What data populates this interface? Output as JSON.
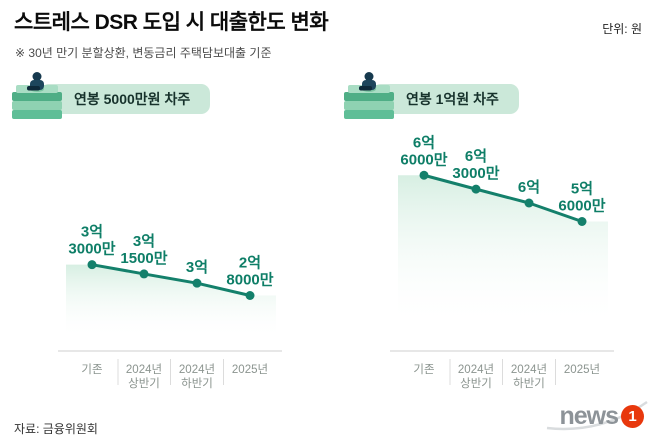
{
  "header": {
    "title": "스트레스 DSR 도입 시 대출한도 변화",
    "unit": "단위: 원",
    "note": "※ 30년 만기 분할상환, 변동금리 주택담보대출 기준"
  },
  "footer": {
    "source": "자료: 금융위원회",
    "logo_text": "news",
    "logo_badge": "1"
  },
  "colors": {
    "line": "#14806b",
    "value_label": "#0e7e67",
    "area_top": "#d5eee1",
    "pill_bg": "#cbe8d9",
    "pill_text": "#17322c",
    "axis": "#cfcfcf",
    "tick_text": "#8b948f",
    "separator": "#dcdcdc",
    "logo_red": "#e8380d",
    "logo_gray": "#8d9398"
  },
  "chart_data": [
    {
      "type": "line",
      "title": "연봉 5000만원 차주",
      "categories": [
        "기존",
        "2024년 상반기",
        "2024년 하반기",
        "2025년"
      ],
      "category_lines": [
        [
          "기존"
        ],
        [
          "2024년",
          "상반기"
        ],
        [
          "2024년",
          "하반기"
        ],
        [
          "2025년"
        ]
      ],
      "values": [
        3.3,
        3.15,
        3.0,
        2.8
      ],
      "value_unit": "억원",
      "value_labels": [
        [
          "3억",
          "3000만"
        ],
        [
          "3억",
          "1500만"
        ],
        [
          "3억"
        ],
        [
          "2억",
          "8000만"
        ]
      ],
      "ylim": [
        1.9,
        4.9
      ],
      "grid": false,
      "legend": false
    },
    {
      "type": "line",
      "title": "연봉 1억원 차주",
      "categories": [
        "기존",
        "2024년 상반기",
        "2024년 하반기",
        "2025년"
      ],
      "category_lines": [
        [
          "기존"
        ],
        [
          "2024년",
          "상반기"
        ],
        [
          "2024년",
          "하반기"
        ],
        [
          "2025년"
        ]
      ],
      "values": [
        6.6,
        6.3,
        6.0,
        5.6
      ],
      "value_unit": "억원",
      "value_labels": [
        [
          "6억",
          "6000만"
        ],
        [
          "6억",
          "3000만"
        ],
        [
          "6억"
        ],
        [
          "5억",
          "6000만"
        ]
      ],
      "ylim": [
        2.8,
        6.8
      ],
      "grid": false,
      "legend": false
    }
  ]
}
